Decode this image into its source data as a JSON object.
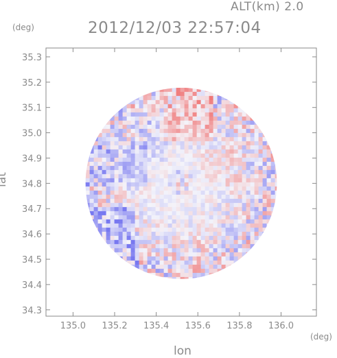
{
  "header": {
    "altitude": "ALT(km) 2.0",
    "timestamp": "2012/12/03 22:57:04"
  },
  "chart_data": {
    "type": "heatmap",
    "title": "2012/12/03 22:57:04",
    "subtitle": "ALT(km) 2.0",
    "xlabel": "lon",
    "ylabel": "lat",
    "x_unit": "(deg)",
    "y_unit": "(deg)",
    "xlim": [
      134.87,
      136.17
    ],
    "ylim": [
      34.275,
      35.335
    ],
    "x_ticks": [
      "135.0",
      "135.2",
      "135.4",
      "135.6",
      "135.8",
      "136.0"
    ],
    "x_tick_values": [
      135.0,
      135.2,
      135.4,
      135.6,
      135.8,
      136.0
    ],
    "y_ticks": [
      "34.3",
      "34.4",
      "34.5",
      "34.6",
      "34.7",
      "34.8",
      "34.9",
      "35.0",
      "35.1",
      "35.2",
      "35.3"
    ],
    "y_tick_values": [
      34.3,
      34.4,
      34.5,
      34.6,
      34.7,
      34.8,
      34.9,
      35.0,
      35.1,
      35.2,
      35.3
    ],
    "radar_center": [
      135.52,
      34.8
    ],
    "radar_radius_deg": 0.46,
    "colors": {
      "positive": "#f07878",
      "negative": "#7878f0",
      "neutral": "#f4f4fa",
      "axis": "#8a8a8a"
    },
    "regions": [
      {
        "lon": [
          135.43,
          135.67
        ],
        "lat": [
          34.98,
          35.32
        ],
        "value": 0.35
      },
      {
        "lon": [
          134.9,
          135.28
        ],
        "lat": [
          34.55,
          34.72
        ],
        "value": -0.55
      },
      {
        "lon": [
          134.95,
          135.3
        ],
        "lat": [
          34.33,
          34.55
        ],
        "value": -0.45
      },
      {
        "lon": [
          134.9,
          135.35
        ],
        "lat": [
          34.8,
          34.98
        ],
        "value": -0.3
      },
      {
        "lon": [
          135.3,
          135.45
        ],
        "lat": [
          34.9,
          35.05
        ],
        "value": -0.15
      },
      {
        "lon": [
          135.6,
          135.8
        ],
        "lat": [
          34.8,
          34.95
        ],
        "value": 0.12
      },
      {
        "lon": [
          135.45,
          135.65
        ],
        "lat": [
          34.35,
          34.6
        ],
        "value": 0.1
      },
      {
        "lon": [
          135.3,
          135.5
        ],
        "lat": [
          34.3,
          34.4
        ],
        "value": -0.25
      }
    ]
  }
}
